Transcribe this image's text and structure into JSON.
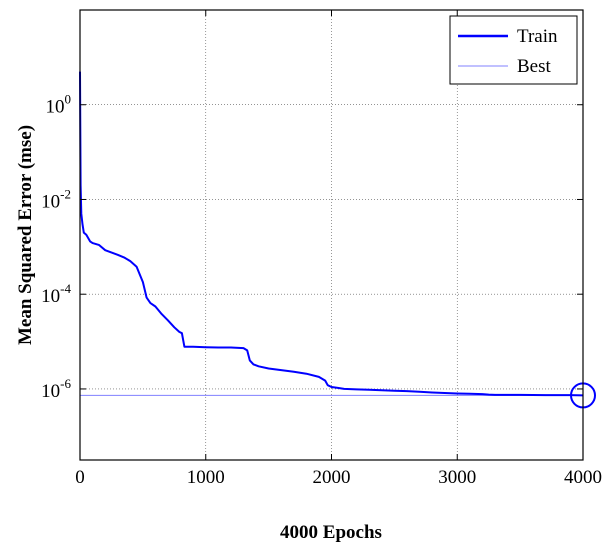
{
  "chart_data": {
    "type": "line",
    "title": "",
    "xlabel": "4000 Epochs",
    "ylabel": "Mean Squared Error  (mse)",
    "xlim": [
      0,
      4000
    ],
    "ylim_log10": [
      -7.5,
      2
    ],
    "y_scale": "log",
    "grid": true,
    "legend_position": "top-right",
    "x_ticks": [
      {
        "value": 0,
        "label": "0"
      },
      {
        "value": 1000,
        "label": "1000"
      },
      {
        "value": 2000,
        "label": "2000"
      },
      {
        "value": 3000,
        "label": "3000"
      },
      {
        "value": 4000,
        "label": "4000"
      }
    ],
    "y_ticks": [
      {
        "exp": 0,
        "base": "10",
        "sup": "0"
      },
      {
        "exp": -2,
        "base": "10",
        "sup": "-2"
      },
      {
        "exp": -4,
        "base": "10",
        "sup": "-4"
      },
      {
        "exp": -6,
        "base": "10",
        "sup": "-6"
      }
    ],
    "series": [
      {
        "name": "Train",
        "color": "#0000ff",
        "x": [
          0,
          5,
          10,
          20,
          30,
          50,
          80,
          100,
          150,
          200,
          300,
          350,
          400,
          450,
          500,
          530,
          560,
          600,
          650,
          700,
          750,
          790,
          810,
          830,
          900,
          1000,
          1100,
          1200,
          1300,
          1330,
          1350,
          1380,
          1420,
          1500,
          1600,
          1700,
          1800,
          1900,
          1950,
          1970,
          2000,
          2050,
          2100,
          2200,
          2300,
          2400,
          2500,
          2600,
          2700,
          2800,
          2900,
          3000,
          3100,
          3200,
          3250,
          3300,
          3500,
          3700,
          3900,
          4000
        ],
        "y": [
          5.0,
          0.02,
          0.005,
          0.003,
          0.002,
          0.0018,
          0.0013,
          0.0012,
          0.0011,
          0.00085,
          0.00068,
          0.0006,
          0.0005,
          0.00038,
          0.00018,
          8.5e-05,
          6.5e-05,
          5.5e-05,
          3.8e-05,
          2.8e-05,
          2e-05,
          1.6e-05,
          1.5e-05,
          7.8e-06,
          7.8e-06,
          7.6e-06,
          7.5e-06,
          7.5e-06,
          7.3e-06,
          6.5e-06,
          4e-06,
          3.3e-06,
          3e-06,
          2.7e-06,
          2.5e-06,
          2.3e-06,
          2.1e-06,
          1.8e-06,
          1.5e-06,
          1.2e-06,
          1.1e-06,
          1.05e-06,
          1e-06,
          9.8e-07,
          9.6e-07,
          9.4e-07,
          9.2e-07,
          9e-07,
          8.7e-07,
          8.4e-07,
          8.2e-07,
          8e-07,
          7.9e-07,
          7.8e-07,
          7.6e-07,
          7.5e-07,
          7.5e-07,
          7.4e-07,
          7.4e-07,
          7.3e-07
        ]
      },
      {
        "name": "Best",
        "color": "#8080ff",
        "y_constant": 7.3e-07
      }
    ],
    "best_marker": {
      "x": 4000,
      "y": 7.3e-07
    }
  }
}
